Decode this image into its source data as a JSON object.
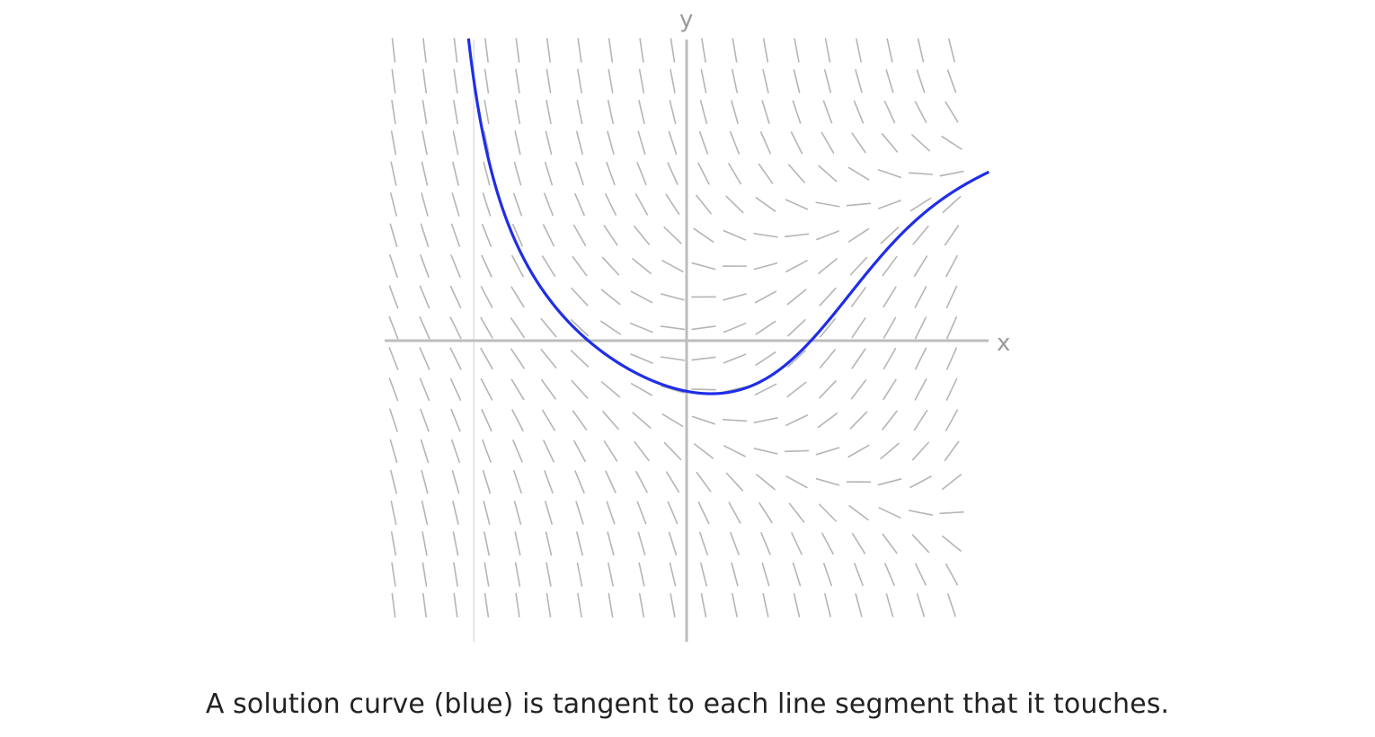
{
  "diagram": {
    "type": "slope-field",
    "x_axis_label": "x",
    "y_axis_label": "y",
    "xlim": [
      -2.6,
      2.6
    ],
    "ylim": [
      -2.6,
      2.6
    ],
    "colors": {
      "segments": "#b5b5b5",
      "axes": "#bdbdbd",
      "secondary_gridline": "#e6e6e6",
      "solution_curve": "#1f2ee6"
    }
  },
  "caption": "A solution curve (blue) is tangent to each line segment that it touches."
}
